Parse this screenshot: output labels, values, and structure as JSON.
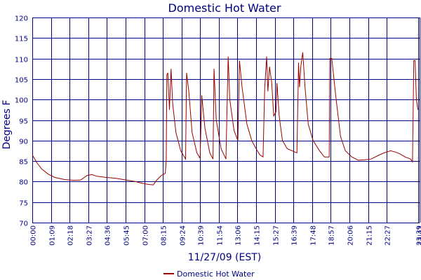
{
  "chart_data": {
    "type": "line",
    "title": "Domestic Hot Water",
    "xlabel": "11/27/09 (EST)",
    "ylabel": "Degrees F",
    "ylim": [
      70,
      120
    ],
    "yticks": [
      "120",
      "115",
      "110",
      "105",
      "100",
      "95",
      "90",
      "85",
      "80",
      "75",
      "70"
    ],
    "xticks": [
      "00:00",
      "01:09",
      "02:18",
      "03:27",
      "04:36",
      "05:45",
      "07:00",
      "08:15",
      "09:24",
      "10:39",
      "11:54",
      "13:06",
      "14:15",
      "15:27",
      "16:39",
      "17:48",
      "18:57",
      "20:06",
      "21:15",
      "22:27",
      "23:39",
      "23:47"
    ],
    "grid": true,
    "legend_position": "bottom-left",
    "line_color": "#990000",
    "grid_color": "#000080",
    "series": [
      {
        "name": "Domestic Hot Water",
        "x_unit": "minutes since 00:00",
        "points": [
          [
            0,
            86.5
          ],
          [
            15,
            84.5
          ],
          [
            30,
            83
          ],
          [
            50,
            81.8
          ],
          [
            70,
            81
          ],
          [
            100,
            80.5
          ],
          [
            130,
            80.3
          ],
          [
            150,
            80.4
          ],
          [
            170,
            81.5
          ],
          [
            185,
            81.7
          ],
          [
            200,
            81.3
          ],
          [
            230,
            81
          ],
          [
            260,
            80.8
          ],
          [
            290,
            80.4
          ],
          [
            320,
            80
          ],
          [
            340,
            79.6
          ],
          [
            360,
            79.3
          ],
          [
            375,
            79.2
          ],
          [
            385,
            80.3
          ],
          [
            400,
            81.5
          ],
          [
            412,
            82
          ],
          [
            415,
            85
          ],
          [
            417,
            106
          ],
          [
            420,
            106.5
          ],
          [
            425,
            97.5
          ],
          [
            430,
            107.5
          ],
          [
            435,
            99
          ],
          [
            445,
            92
          ],
          [
            460,
            87.5
          ],
          [
            475,
            85.5
          ],
          [
            478,
            106.5
          ],
          [
            485,
            102
          ],
          [
            495,
            92
          ],
          [
            510,
            87
          ],
          [
            520,
            85.7
          ],
          [
            525,
            101
          ],
          [
            535,
            93
          ],
          [
            550,
            87
          ],
          [
            560,
            85.5
          ],
          [
            563,
            107.5
          ],
          [
            570,
            95
          ],
          [
            585,
            88
          ],
          [
            600,
            85.5
          ],
          [
            607,
            110.5
          ],
          [
            612,
            100
          ],
          [
            625,
            92.5
          ],
          [
            637,
            90
          ],
          [
            642,
            109.5
          ],
          [
            650,
            103
          ],
          [
            665,
            94
          ],
          [
            680,
            90
          ],
          [
            690,
            88.5
          ],
          [
            705,
            86.5
          ],
          [
            715,
            86
          ],
          [
            720,
            102.5
          ],
          [
            726,
            110.5
          ],
          [
            730,
            102
          ],
          [
            735,
            108
          ],
          [
            742,
            104
          ],
          [
            748,
            96
          ],
          [
            755,
            97
          ],
          [
            758,
            104
          ],
          [
            765,
            96
          ],
          [
            775,
            90
          ],
          [
            790,
            88
          ],
          [
            805,
            87.5
          ],
          [
            820,
            87
          ],
          [
            825,
            109
          ],
          [
            828,
            103
          ],
          [
            832,
            108
          ],
          [
            838,
            111.5
          ],
          [
            845,
            103
          ],
          [
            855,
            94
          ],
          [
            870,
            90
          ],
          [
            890,
            87.5
          ],
          [
            905,
            86
          ],
          [
            920,
            86
          ],
          [
            922,
            110
          ],
          [
            928,
            110
          ],
          [
            940,
            101
          ],
          [
            955,
            91
          ],
          [
            970,
            87.5
          ],
          [
            990,
            86
          ],
          [
            1010,
            85.2
          ],
          [
            1030,
            85.3
          ],
          [
            1050,
            85.5
          ],
          [
            1070,
            86.3
          ],
          [
            1090,
            87
          ],
          [
            1110,
            87.5
          ],
          [
            1125,
            87.2
          ],
          [
            1140,
            86.7
          ],
          [
            1155,
            86
          ],
          [
            1172,
            85.5
          ],
          [
            1178,
            84.8
          ],
          [
            1182,
            109.5
          ],
          [
            1186,
            109.5
          ],
          [
            1190,
            100
          ],
          [
            1195,
            97.5
          ]
        ]
      }
    ]
  }
}
